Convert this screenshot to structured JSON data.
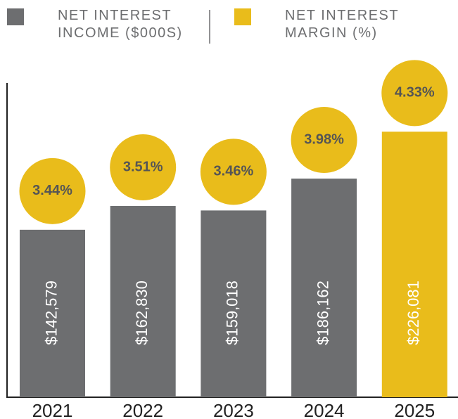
{
  "chart_data": {
    "type": "bar",
    "categories": [
      "2021",
      "2022",
      "2023",
      "2024",
      "2025"
    ],
    "series": [
      {
        "name": "NET INTEREST INCOME ($000S)",
        "color": "#6d6e70",
        "colors": [
          "#6d6e70",
          "#6d6e70",
          "#6d6e70",
          "#6d6e70",
          "#e9bc1b"
        ],
        "values": [
          142579,
          162830,
          159018,
          186162,
          226081
        ],
        "value_labels": [
          "$142,579",
          "$162,830",
          "$159,018",
          "$186,162",
          "$226,081"
        ]
      },
      {
        "name": "NET INTEREST MARGIN (%)",
        "color": "#e9bc1b",
        "values": [
          3.44,
          3.51,
          3.46,
          3.98,
          4.33
        ],
        "value_labels": [
          "3.44%",
          "3.51%",
          "3.46%",
          "3.98%",
          "4.33%"
        ]
      }
    ],
    "ylim": [
      0,
      270000
    ]
  }
}
